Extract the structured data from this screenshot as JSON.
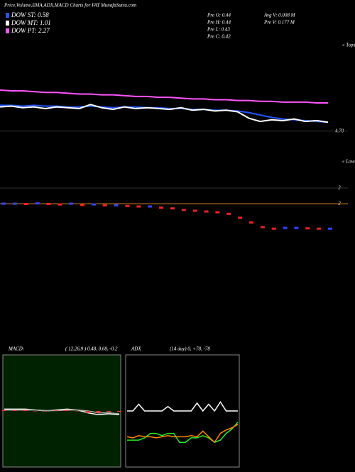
{
  "header": {
    "title": "Price,Volume,EMA,ADX,MACD Charts for FAT MunafaSutra.com"
  },
  "stats": [
    "Pre  O: 0.44",
    "Pre  H: 0.44",
    "Pre  L: 0.43",
    "Pre  C: 0.42",
    "Avg V: 0.008 M",
    "Pre  V: 0.177 M"
  ],
  "chart_data": [
    {
      "type": "line",
      "annotations": [
        "« Tops",
        "« Lows"
      ],
      "ylim": [
        4.3,
        5.8
      ],
      "yticks": [
        {
          "value": 4.7,
          "label": "4.70"
        }
      ],
      "series": [
        {
          "name": "DOW ST: 0.58",
          "color": "#2255ff",
          "values": [
            5.02,
            5.02,
            5.01,
            5.02,
            5.01,
            5.01,
            5.0,
            5.0,
            5.01,
            5.0,
            4.99,
            5.0,
            5.0,
            4.99,
            4.99,
            4.98,
            4.98,
            4.97,
            4.97,
            4.96,
            4.96,
            4.95,
            4.93,
            4.9,
            4.87,
            4.85,
            4.84,
            4.83,
            4.82,
            4.81
          ]
        },
        {
          "name": "DOW MT: 1.01",
          "color": "#ffffff",
          "values": [
            5.0,
            5.01,
            4.99,
            5.0,
            4.98,
            5.0,
            4.99,
            4.98,
            5.03,
            4.99,
            4.97,
            5.0,
            4.98,
            4.99,
            4.98,
            4.97,
            4.99,
            4.96,
            4.97,
            4.95,
            4.96,
            4.94,
            4.86,
            4.82,
            4.84,
            4.83,
            4.85,
            4.82,
            4.83,
            4.81
          ]
        },
        {
          "name": "DOW PT: 2.27",
          "color": "#ff55ff",
          "values": [
            5.21,
            5.2,
            5.2,
            5.19,
            5.18,
            5.18,
            5.17,
            5.16,
            5.16,
            5.15,
            5.15,
            5.14,
            5.13,
            5.13,
            5.12,
            5.12,
            5.11,
            5.1,
            5.1,
            5.09,
            5.09,
            5.08,
            5.08,
            5.07,
            5.07,
            5.06,
            5.06,
            5.06,
            5.05,
            5.05
          ]
        }
      ]
    },
    {
      "type": "marker",
      "ylim": [
        0,
        3.5
      ],
      "yticks": [
        2,
        3
      ],
      "values": [
        2.0,
        2.0,
        1.98,
        2.02,
        1.98,
        1.95,
        2.0,
        1.92,
        1.95,
        1.9,
        1.9,
        1.85,
        1.82,
        1.82,
        1.75,
        1.7,
        1.6,
        1.55,
        1.5,
        1.45,
        1.35,
        1.1,
        0.8,
        0.5,
        0.4,
        0.45,
        0.45,
        0.42,
        0.4,
        0.4
      ]
    },
    {
      "type": "line",
      "title": "MACD:",
      "subtitle": "( 12,26,9 ) 0.48, 0.68, -0.2",
      "ylim": [
        -3,
        3
      ],
      "background": "#002200",
      "series": [
        {
          "color": "#ffffff",
          "values": [
            0.1,
            0.1,
            0.1,
            0.05,
            0.0,
            0.05,
            0.1,
            0.05,
            -0.1,
            -0.2,
            -0.15,
            -0.2
          ]
        },
        {
          "color": "#aaaaaa",
          "values": [
            0.05,
            0.05,
            0.05,
            0.05,
            0.02,
            0.02,
            0.05,
            0.05,
            0.0,
            -0.1,
            -0.1,
            -0.15
          ]
        },
        {
          "color": "#ff3333",
          "kind": "bar",
          "values": [
            0.05,
            0.05,
            0.05,
            0.0,
            -0.02,
            0.03,
            0.05,
            0.0,
            -0.1,
            -0.1,
            -0.05,
            -0.05
          ]
        }
      ]
    },
    {
      "type": "line",
      "title": "ADX",
      "subtitle": "(14 day) 0, +78, -78",
      "ylim": [
        0,
        100
      ],
      "series": [
        {
          "color": "#ffffff",
          "values": [
            50,
            50,
            56,
            50,
            50,
            50,
            50,
            54,
            50,
            50,
            50,
            50,
            57,
            50,
            56,
            50,
            58,
            50,
            50,
            50
          ]
        },
        {
          "color": "#22ee22",
          "values": [
            24,
            24,
            24,
            26,
            30,
            30,
            28,
            30,
            30,
            22,
            22,
            26,
            26,
            28,
            26,
            22,
            24,
            30,
            34,
            40
          ]
        },
        {
          "color": "#ff8800",
          "values": [
            27,
            26,
            28,
            27,
            27,
            26,
            27,
            28,
            27,
            27,
            27,
            28,
            27,
            32,
            27,
            22,
            30,
            33,
            35,
            38
          ]
        }
      ]
    }
  ]
}
